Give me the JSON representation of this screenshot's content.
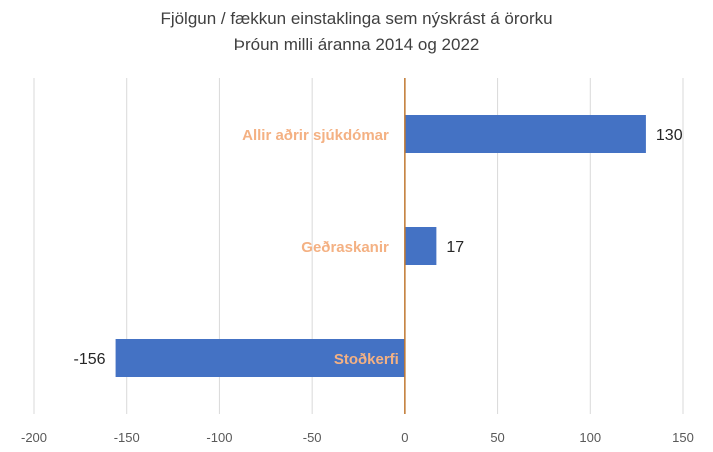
{
  "chart_data": {
    "type": "bar",
    "orientation": "horizontal",
    "title": [
      "Fjölgun / fækkun einstaklinga sem nýskrást á örorku",
      "Þróun milli áranna 2014 og 2022"
    ],
    "categories": [
      "Allir aðrir sjúkdómar",
      "Geðraskanir",
      "Stoðkerfi"
    ],
    "values": [
      130,
      17,
      -156
    ],
    "data_labels": [
      "130",
      "17",
      "-156"
    ],
    "xlim": [
      -200,
      150
    ],
    "xticks": [
      -200,
      -150,
      -100,
      -50,
      0,
      50,
      100,
      150
    ],
    "xtick_labels": [
      "-200",
      "-150",
      "-100",
      "-50",
      "0",
      "50",
      "100",
      "150"
    ],
    "grid": "vertical",
    "colors": {
      "bar": "#4472C4",
      "category_label": "#F4B183",
      "zero_line": "#C07830",
      "grid": "#D9D9D9",
      "text": "#404040"
    }
  }
}
